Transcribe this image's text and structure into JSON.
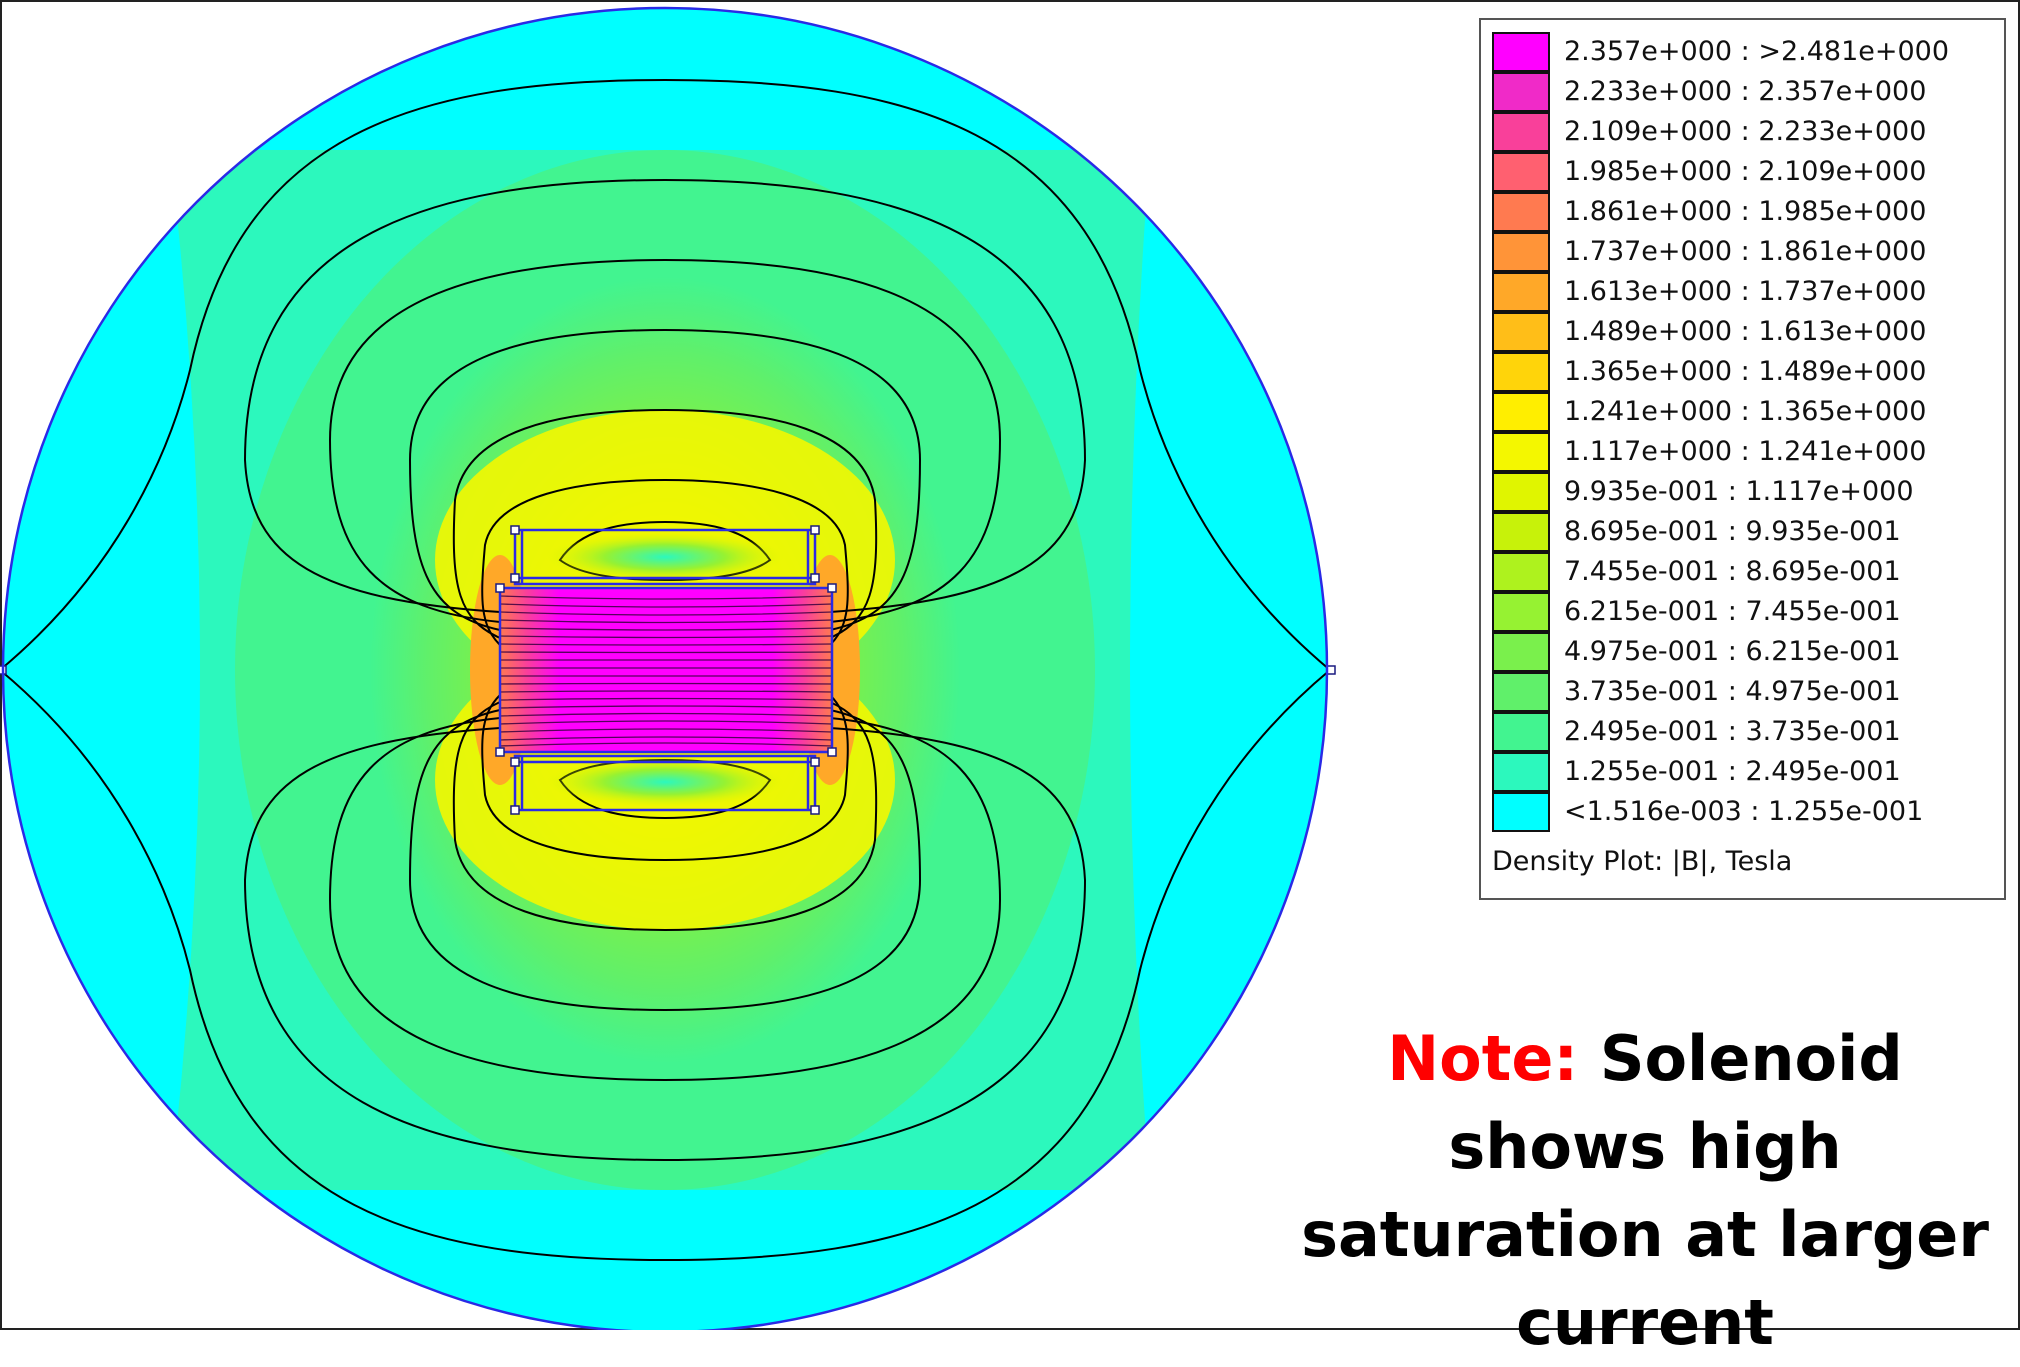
{
  "legend": {
    "entries": [
      {
        "label": "2.357e+000 : >2.481e+000",
        "color": "#ff00ff"
      },
      {
        "label": "2.233e+000 : 2.357e+000",
        "color": "#f02ac8"
      },
      {
        "label": "2.109e+000 : 2.233e+000",
        "color": "#f9409a"
      },
      {
        "label": "1.985e+000 : 2.109e+000",
        "color": "#ff6070"
      },
      {
        "label": "1.861e+000 : 1.985e+000",
        "color": "#ff7a50"
      },
      {
        "label": "1.737e+000 : 1.861e+000",
        "color": "#ff9438"
      },
      {
        "label": "1.613e+000 : 1.737e+000",
        "color": "#ffa828"
      },
      {
        "label": "1.489e+000 : 1.613e+000",
        "color": "#ffbe18"
      },
      {
        "label": "1.365e+000 : 1.489e+000",
        "color": "#ffd40a"
      },
      {
        "label": "1.241e+000 : 1.365e+000",
        "color": "#ffee00"
      },
      {
        "label": "1.117e+000 : 1.241e+000",
        "color": "#f4f700"
      },
      {
        "label": "9.935e-001 : 1.117e+000",
        "color": "#e0f500"
      },
      {
        "label": "8.695e-001 : 9.935e-001",
        "color": "#c7f20a"
      },
      {
        "label": "7.455e-001 : 8.695e-001",
        "color": "#aef21e"
      },
      {
        "label": "6.215e-001 : 7.455e-001",
        "color": "#96f232"
      },
      {
        "label": "4.975e-001 : 6.215e-001",
        "color": "#7af04c"
      },
      {
        "label": "3.735e-001 : 4.975e-001",
        "color": "#60f06a"
      },
      {
        "label": "2.495e-001 : 3.735e-001",
        "color": "#42f490"
      },
      {
        "label": "1.255e-001 : 2.495e-001",
        "color": "#2cf8bd"
      },
      {
        "label": "<1.516e-003 : 1.255e-001",
        "color": "#00ffff"
      }
    ],
    "caption": "Density Plot: |B|, Tesla"
  },
  "note": {
    "prefix": "Note:",
    "text": "Solenoid shows high saturation at larger current"
  },
  "colors": {
    "boundary": "#2a2ae6",
    "contour": "#000000",
    "outer_region": "#00ffff",
    "note_prefix": "#ff0000"
  }
}
